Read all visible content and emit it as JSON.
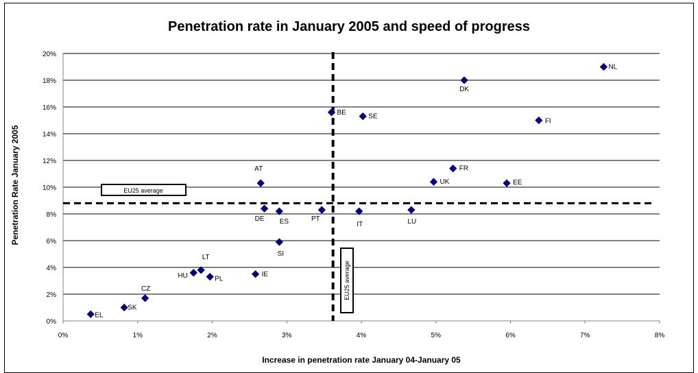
{
  "chart_data": {
    "type": "scatter",
    "title": "Penetration rate in January 2005 and speed of progress",
    "xlabel": "Increase in penetration rate January 04-January 05",
    "ylabel": "Penetration Rate January 2005",
    "xlim": [
      0,
      8
    ],
    "ylim": [
      0,
      20
    ],
    "x_ticks": [
      "0%",
      "1%",
      "2%",
      "3%",
      "4%",
      "5%",
      "6%",
      "7%",
      "8%"
    ],
    "y_ticks": [
      "0%",
      "2%",
      "4%",
      "6%",
      "8%",
      "10%",
      "12%",
      "14%",
      "16%",
      "18%",
      "20%"
    ],
    "grid": "horizontal",
    "marker_color": "#000080",
    "points": [
      {
        "label": "NL",
        "x": 7.25,
        "y": 19.0
      },
      {
        "label": "DK",
        "x": 5.38,
        "y": 18.0
      },
      {
        "label": "BE",
        "x": 3.6,
        "y": 15.6
      },
      {
        "label": "SE",
        "x": 4.02,
        "y": 15.3
      },
      {
        "label": "FI",
        "x": 6.38,
        "y": 15.0
      },
      {
        "label": "FR",
        "x": 5.23,
        "y": 11.4
      },
      {
        "label": "AT",
        "x": 2.65,
        "y": 10.3
      },
      {
        "label": "UK",
        "x": 4.97,
        "y": 10.4
      },
      {
        "label": "EE",
        "x": 5.95,
        "y": 10.3
      },
      {
        "label": "DE",
        "x": 2.7,
        "y": 8.4
      },
      {
        "label": "ES",
        "x": 2.9,
        "y": 8.2
      },
      {
        "label": "PT",
        "x": 3.47,
        "y": 8.3
      },
      {
        "label": "IT",
        "x": 3.97,
        "y": 8.2
      },
      {
        "label": "LU",
        "x": 4.67,
        "y": 8.3
      },
      {
        "label": "SI",
        "x": 2.9,
        "y": 5.9
      },
      {
        "label": "LT",
        "x": 1.85,
        "y": 3.8
      },
      {
        "label": "HU",
        "x": 1.75,
        "y": 3.6
      },
      {
        "label": "PL",
        "x": 1.97,
        "y": 3.3
      },
      {
        "label": "IE",
        "x": 2.58,
        "y": 3.5
      },
      {
        "label": "CZ",
        "x": 1.1,
        "y": 1.7
      },
      {
        "label": "SK",
        "x": 0.82,
        "y": 1.0
      },
      {
        "label": "EL",
        "x": 0.37,
        "y": 0.5
      }
    ],
    "reference_lines": [
      {
        "orientation": "horizontal",
        "value": 8.8,
        "label": "EU25 average"
      },
      {
        "orientation": "vertical",
        "value": 3.62,
        "label": "EU25 average"
      }
    ]
  }
}
